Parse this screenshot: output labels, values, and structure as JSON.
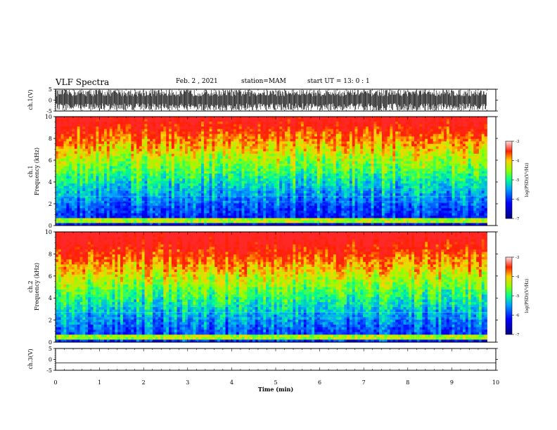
{
  "header": {
    "title": "VLF Spectra",
    "date": "Feb. 2 , 2021",
    "station": "station=MAM",
    "start": "start UT = 13: 0 : 1"
  },
  "chart_data": [
    {
      "type": "line",
      "panel": "ch1-waveform",
      "ylabel": "ch.1(V)",
      "ylim": [
        -5,
        5
      ],
      "yticks": [
        5,
        0,
        -5
      ],
      "xlim": [
        0,
        10
      ],
      "description_note": "dense impulsive waveform spanning roughly -5 to +5 V from 0 to ~9.8 min"
    },
    {
      "type": "heatmap",
      "panel": "ch1-spectrogram",
      "ylabel": "ch.1\nFrequency (kHz)",
      "ylim": [
        0,
        10
      ],
      "yticks": [
        0,
        2,
        4,
        6,
        8,
        10
      ],
      "xlim": [
        0,
        10
      ],
      "data_extent_x": [
        0,
        9.8
      ],
      "colorbar": {
        "label": "log(PSD)(V²/Hz)",
        "range": [
          -7,
          -3
        ],
        "ticks": [
          -3,
          -4,
          -5,
          -6,
          -7
        ]
      }
    },
    {
      "type": "heatmap",
      "panel": "ch2-spectrogram",
      "ylabel": "ch.2\nFrequency (kHz)",
      "ylim": [
        0,
        10
      ],
      "yticks": [
        0,
        2,
        4,
        6,
        8,
        10
      ],
      "xlim": [
        0,
        10
      ],
      "data_extent_x": [
        0,
        9.8
      ],
      "colorbar": {
        "label": "log(PSD)(V²/Hz)",
        "range": [
          -7,
          -3
        ],
        "ticks": [
          -3,
          -4,
          -5,
          -6,
          -7
        ]
      }
    },
    {
      "type": "line",
      "panel": "ch3-waveform",
      "ylabel": "ch.3(V)",
      "ylim": [
        -5,
        5
      ],
      "yticks": [
        5,
        0,
        -5
      ],
      "xlim": [
        0,
        10
      ],
      "series": [
        {
          "x": [
            0,
            10
          ],
          "y": [
            -1.6,
            -1.6
          ]
        }
      ]
    }
  ],
  "xaxis": {
    "label": "Time (min)",
    "ticks": [
      0,
      1,
      2,
      3,
      4,
      5,
      6,
      7,
      8,
      9,
      10
    ]
  },
  "colors": {
    "spec_low": "#00008b",
    "spec_mid": "#00ff80",
    "spec_high": "#ff0000"
  }
}
